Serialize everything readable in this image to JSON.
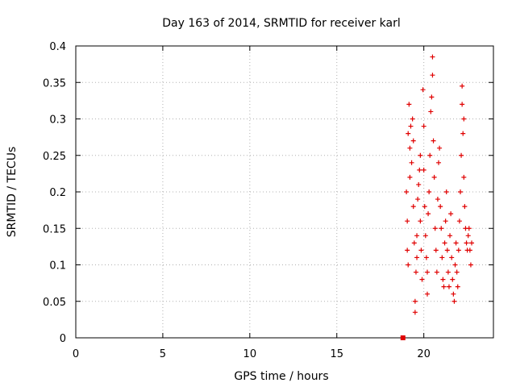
{
  "chart_data": {
    "type": "scatter",
    "title": "Day 163 of 2014, SRMTID for receiver karl",
    "xlabel": "GPS time / hours",
    "ylabel": "SRMTID / TECUs",
    "xlim": [
      0,
      24
    ],
    "ylim": [
      0,
      0.4
    ],
    "grid": true,
    "x_ticks": [
      0,
      5,
      10,
      15,
      20
    ],
    "x_tick_labels": [
      "0",
      "5",
      "10",
      "15",
      "20"
    ],
    "y_ticks": [
      0,
      0.05,
      0.1,
      0.15,
      0.2,
      0.25,
      0.3,
      0.35,
      0.4
    ],
    "y_tick_labels": [
      "0",
      "0.05",
      "0.1",
      "0.15",
      "0.2",
      "0.25",
      "0.3",
      "0.35",
      "0.4"
    ],
    "marker": "+",
    "series": [
      {
        "name": "SRMTID",
        "color": "#e00000",
        "points": [
          [
            18.8,
            0.0
          ],
          [
            19.0,
            0.2
          ],
          [
            19.05,
            0.16
          ],
          [
            19.05,
            0.12
          ],
          [
            19.1,
            0.1
          ],
          [
            19.1,
            0.28
          ],
          [
            19.15,
            0.32
          ],
          [
            19.2,
            0.26
          ],
          [
            19.2,
            0.22
          ],
          [
            19.25,
            0.29
          ],
          [
            19.3,
            0.24
          ],
          [
            19.35,
            0.3
          ],
          [
            19.4,
            0.27
          ],
          [
            19.4,
            0.18
          ],
          [
            19.45,
            0.13
          ],
          [
            19.5,
            0.05
          ],
          [
            19.5,
            0.035
          ],
          [
            19.55,
            0.09
          ],
          [
            19.6,
            0.11
          ],
          [
            19.6,
            0.14
          ],
          [
            19.65,
            0.19
          ],
          [
            19.7,
            0.21
          ],
          [
            19.75,
            0.23
          ],
          [
            19.8,
            0.25
          ],
          [
            19.8,
            0.16
          ],
          [
            19.85,
            0.12
          ],
          [
            19.9,
            0.08
          ],
          [
            19.95,
            0.34
          ],
          [
            20.0,
            0.29
          ],
          [
            20.0,
            0.23
          ],
          [
            20.05,
            0.18
          ],
          [
            20.1,
            0.14
          ],
          [
            20.15,
            0.11
          ],
          [
            20.2,
            0.09
          ],
          [
            20.2,
            0.06
          ],
          [
            20.25,
            0.17
          ],
          [
            20.3,
            0.2
          ],
          [
            20.35,
            0.25
          ],
          [
            20.4,
            0.31
          ],
          [
            20.45,
            0.33
          ],
          [
            20.5,
            0.385
          ],
          [
            20.5,
            0.36
          ],
          [
            20.55,
            0.27
          ],
          [
            20.6,
            0.22
          ],
          [
            20.65,
            0.15
          ],
          [
            20.7,
            0.12
          ],
          [
            20.75,
            0.09
          ],
          [
            20.8,
            0.19
          ],
          [
            20.85,
            0.24
          ],
          [
            20.9,
            0.26
          ],
          [
            20.95,
            0.18
          ],
          [
            21.0,
            0.15
          ],
          [
            21.05,
            0.11
          ],
          [
            21.1,
            0.08
          ],
          [
            21.15,
            0.07
          ],
          [
            21.2,
            0.13
          ],
          [
            21.25,
            0.16
          ],
          [
            21.3,
            0.2
          ],
          [
            21.35,
            0.12
          ],
          [
            21.4,
            0.09
          ],
          [
            21.45,
            0.07
          ],
          [
            21.5,
            0.14
          ],
          [
            21.55,
            0.17
          ],
          [
            21.6,
            0.11
          ],
          [
            21.65,
            0.08
          ],
          [
            21.7,
            0.06
          ],
          [
            21.75,
            0.05
          ],
          [
            21.8,
            0.1
          ],
          [
            21.85,
            0.13
          ],
          [
            21.9,
            0.09
          ],
          [
            21.95,
            0.07
          ],
          [
            22.0,
            0.12
          ],
          [
            22.05,
            0.16
          ],
          [
            22.1,
            0.2
          ],
          [
            22.15,
            0.25
          ],
          [
            22.2,
            0.345
          ],
          [
            22.2,
            0.32
          ],
          [
            22.25,
            0.28
          ],
          [
            22.3,
            0.3
          ],
          [
            22.3,
            0.22
          ],
          [
            22.35,
            0.18
          ],
          [
            22.4,
            0.15
          ],
          [
            22.45,
            0.13
          ],
          [
            22.5,
            0.12
          ],
          [
            22.55,
            0.14
          ],
          [
            22.6,
            0.15
          ],
          [
            22.65,
            0.12
          ],
          [
            22.7,
            0.1
          ],
          [
            22.75,
            0.13
          ]
        ]
      }
    ]
  }
}
